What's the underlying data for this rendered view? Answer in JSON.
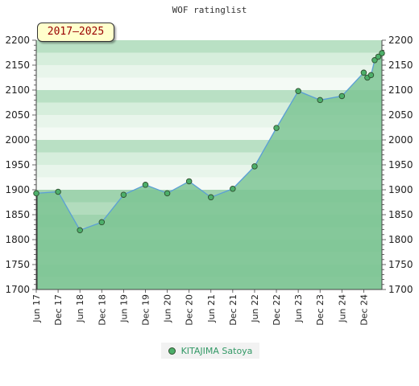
{
  "chart_data": {
    "type": "area",
    "title": "WOF ratinglist",
    "badge": "2017–2025",
    "ylim": [
      1700,
      2200
    ],
    "y_ticks": [
      1700,
      1750,
      1800,
      1850,
      1900,
      1950,
      2000,
      2050,
      2100,
      2150,
      2200
    ],
    "x_ticks": [
      "Jun 17",
      "Dec 17",
      "Jun 18",
      "Dec 18",
      "Jun 19",
      "Dec 19",
      "Jun 20",
      "Dec 20",
      "Jun 21",
      "Dec 21",
      "Jun 22",
      "Dec 22",
      "Jun 23",
      "Dec 23",
      "Jun 24",
      "Dec 24"
    ],
    "x_range": [
      0,
      95
    ],
    "series": [
      {
        "name": "KITAJIMA Satoya",
        "color": "#4daf6a",
        "x": [
          0,
          6,
          12,
          18,
          24,
          30,
          36,
          42,
          48,
          54,
          60,
          66,
          72,
          78,
          84,
          90,
          91,
          92,
          93,
          94,
          95
        ],
        "y": [
          1893,
          1896,
          1819,
          1835,
          1890,
          1910,
          1893,
          1917,
          1885,
          1902,
          1947,
          2024,
          2098,
          2080,
          2088,
          2135,
          2125,
          2130,
          2160,
          2167,
          2174
        ]
      }
    ]
  }
}
